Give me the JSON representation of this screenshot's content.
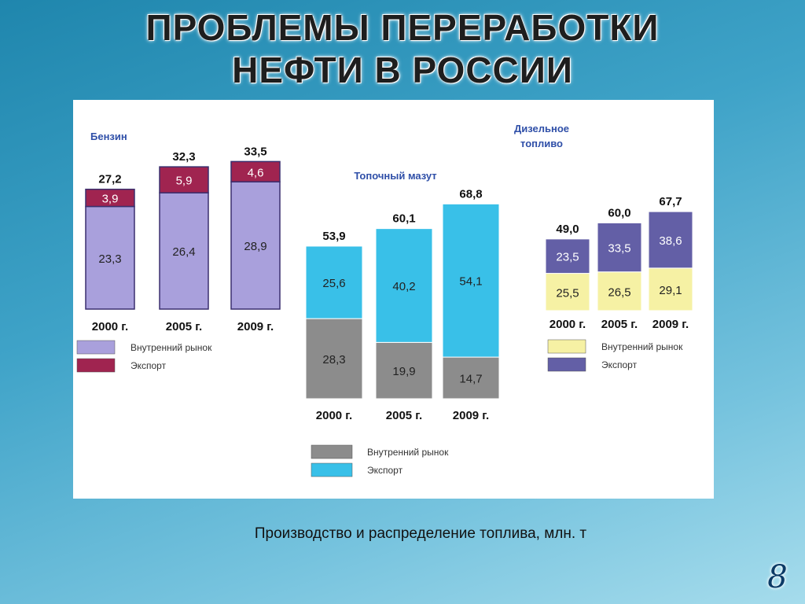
{
  "slide": {
    "title_line1": "ПРОБЛЕМЫ ПЕРЕРАБОТКИ",
    "title_line2": "НЕФТИ В РОССИИ",
    "caption": "Производство и распределение топлива, млн. т",
    "page_number": "8"
  },
  "chart_data": [
    {
      "type": "bar",
      "stacked": true,
      "title": "Бензин",
      "categories": [
        "2000 г.",
        "2005 г.",
        "2009 г."
      ],
      "totals": [
        "27,2",
        "32,3",
        "33,5"
      ],
      "series": [
        {
          "name": "Внутренний рынок",
          "values": [
            23.3,
            26.4,
            28.9
          ],
          "labels": [
            "23,3",
            "26,4",
            "28,9"
          ],
          "color": "#a9a0dc"
        },
        {
          "name": "Экспорт",
          "values": [
            3.9,
            5.9,
            4.6
          ],
          "labels": [
            "3,9",
            "5,9",
            "4,6"
          ],
          "color": "#a02450"
        }
      ]
    },
    {
      "type": "bar",
      "stacked": true,
      "title": "Топочный мазут",
      "categories": [
        "2000 г.",
        "2005 г.",
        "2009 г."
      ],
      "totals": [
        "53,9",
        "60,1",
        "68,8"
      ],
      "series": [
        {
          "name": "Внутренний рынок",
          "values": [
            28.3,
            19.9,
            14.7
          ],
          "labels": [
            "28,3",
            "19,9",
            "14,7"
          ],
          "color": "#8c8c8c"
        },
        {
          "name": "Экспорт",
          "values": [
            25.6,
            40.2,
            54.1
          ],
          "labels": [
            "25,6",
            "40,2",
            "54,1"
          ],
          "color": "#39c0e8"
        }
      ]
    },
    {
      "type": "bar",
      "stacked": true,
      "title": "Дизельное топливо",
      "categories": [
        "2000 г.",
        "2005 г.",
        "2009 г."
      ],
      "totals": [
        "49,0",
        "60,0",
        "67,7"
      ],
      "series": [
        {
          "name": "Внутренний рынок",
          "values": [
            25.5,
            26.5,
            29.1
          ],
          "labels": [
            "25,5",
            "26,5",
            "29,1"
          ],
          "color": "#f6f1a4"
        },
        {
          "name": "Экспорт",
          "values": [
            23.5,
            33.5,
            38.6
          ],
          "labels": [
            "23,5",
            "33,5",
            "38,6"
          ],
          "color": "#635fa6"
        }
      ]
    }
  ]
}
